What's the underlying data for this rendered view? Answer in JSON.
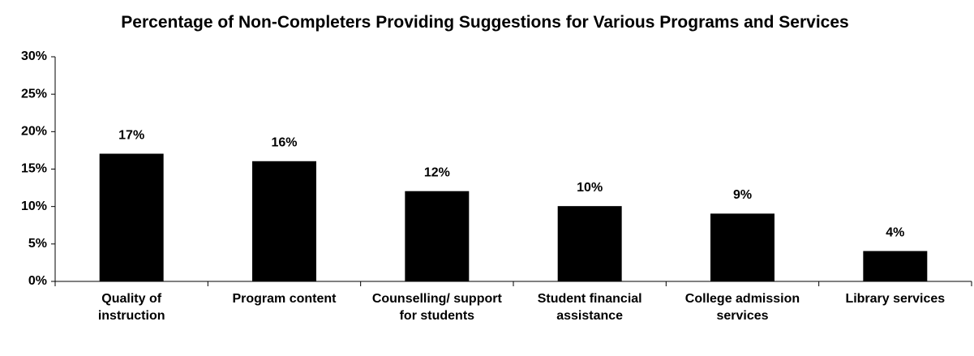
{
  "chart_data": {
    "type": "bar",
    "title": "Percentage of Non-Completers Providing Suggestions for Various Programs and Services",
    "categories": [
      "Quality of instruction",
      "Program content",
      "Counselling/ support for students",
      "Student financial assistance",
      "College admission services",
      "Library services"
    ],
    "values": [
      17,
      16,
      12,
      10,
      9,
      4
    ],
    "value_labels": [
      "17%",
      "16%",
      "12%",
      "10%",
      "9%",
      "4%"
    ],
    "color": "#000000",
    "ylim": [
      0,
      30
    ],
    "yticks": [
      {
        "value": 0,
        "label": "0%"
      },
      {
        "value": 5,
        "label": "5%"
      },
      {
        "value": 10,
        "label": "10%"
      },
      {
        "value": 15,
        "label": "15%"
      },
      {
        "value": 20,
        "label": "20%"
      },
      {
        "value": 25,
        "label": "25%"
      },
      {
        "value": 30,
        "label": "30%"
      }
    ],
    "grid": false
  }
}
